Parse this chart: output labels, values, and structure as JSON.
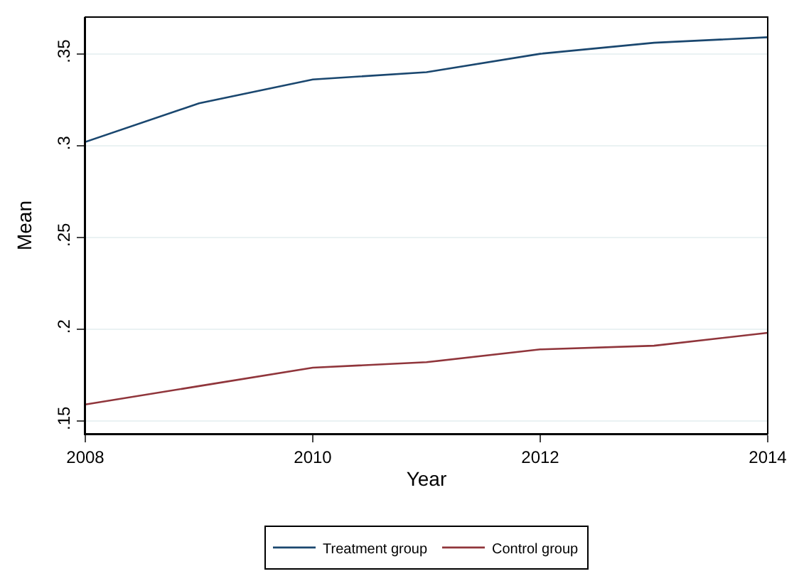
{
  "chart_data": {
    "type": "line",
    "xlabel": "Year",
    "ylabel": "Mean",
    "x": [
      2008,
      2009,
      2010,
      2011,
      2012,
      2013,
      2014
    ],
    "series": [
      {
        "name": "Treatment group",
        "color": "#1a476f",
        "values": [
          0.302,
          0.323,
          0.336,
          0.34,
          0.35,
          0.356,
          0.359
        ]
      },
      {
        "name": "Control group",
        "color": "#90353b",
        "values": [
          0.159,
          0.169,
          0.179,
          0.182,
          0.189,
          0.191,
          0.198
        ]
      }
    ],
    "xlim": [
      2008,
      2014
    ],
    "xticks": [
      2008,
      2010,
      2012,
      2014
    ],
    "ylim": [
      0.143,
      0.37
    ],
    "yticks": [
      {
        "value": 0.15,
        "label": ".15"
      },
      {
        "value": 0.2,
        "label": ".2"
      },
      {
        "value": 0.25,
        "label": ".25"
      },
      {
        "value": 0.3,
        "label": ".3"
      },
      {
        "value": 0.35,
        "label": ".35"
      }
    ],
    "grid": "y",
    "legend": "bottom",
    "marker": "none",
    "line_style": "solid"
  }
}
